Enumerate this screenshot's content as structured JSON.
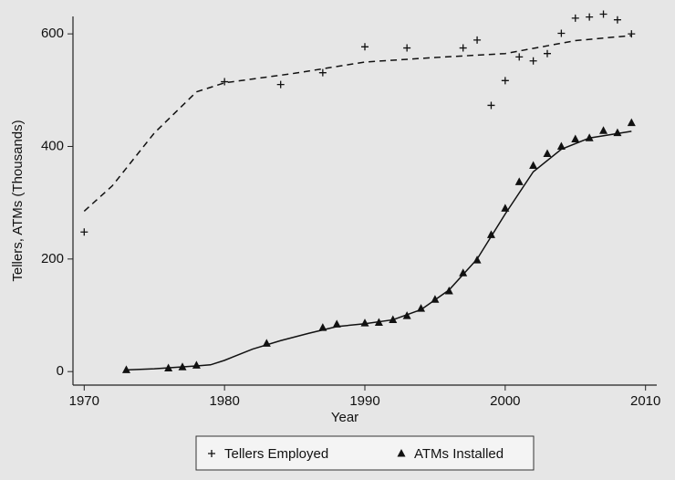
{
  "chart_data": {
    "type": "scatter",
    "x_label": "Year",
    "y_label": "Tellers, ATMs (Thousands)",
    "xlim": [
      1969.2,
      2010.8
    ],
    "ylim": [
      -24,
      631
    ],
    "xticks": [
      1970,
      1980,
      1990,
      2000,
      2010
    ],
    "yticks": [
      0,
      200,
      400,
      600
    ],
    "legend": "bottom",
    "series": [
      {
        "name": "Tellers Employed",
        "color": "#111111",
        "marker": "plus",
        "fit_style": "dashed",
        "x": [
          1970,
          1980,
          1984,
          1987,
          1990,
          1993,
          1997,
          1998,
          1999,
          2000,
          2001,
          2002,
          2003,
          2004,
          2005,
          2006,
          2007,
          2008,
          2009
        ],
        "values": [
          248,
          515,
          510,
          531,
          577,
          575,
          575,
          589,
          473,
          517,
          559,
          552,
          565,
          601,
          628,
          630,
          635,
          625,
          600
        ],
        "fit": {
          "x": [
            1970,
            1972,
            1975,
            1978,
            1980,
            1985,
            1990,
            1995,
            2000,
            2005,
            2009
          ],
          "values": [
            285,
            330,
            424,
            497,
            513,
            530,
            550,
            558,
            565,
            588,
            597
          ]
        }
      },
      {
        "name": "ATMs Installed",
        "color": "#111111",
        "marker": "triangle",
        "fit_style": "solid",
        "x": [
          1973,
          1976,
          1977,
          1978,
          1983,
          1987,
          1988,
          1990,
          1991,
          1992,
          1993,
          1994,
          1995,
          1996,
          1997,
          1998,
          1999,
          2000,
          2001,
          2002,
          2003,
          2004,
          2005,
          2006,
          2007,
          2008,
          2009
        ],
        "values": [
          3,
          6,
          8,
          11,
          50,
          78,
          84,
          86,
          87,
          92,
          99,
          112,
          128,
          143,
          175,
          198,
          243,
          290,
          337,
          366,
          387,
          400,
          413,
          415,
          428,
          424,
          442
        ],
        "fit": {
          "x": [
            1973,
            1975,
            1978,
            1979,
            1980,
            1982,
            1984,
            1986,
            1988,
            1990,
            1992,
            1994,
            1996,
            1998,
            2000,
            2002,
            2004,
            2006,
            2009
          ],
          "values": [
            3,
            5,
            10,
            12,
            20,
            40,
            55,
            68,
            80,
            85,
            92,
            110,
            145,
            200,
            280,
            355,
            395,
            415,
            427
          ]
        }
      }
    ]
  }
}
